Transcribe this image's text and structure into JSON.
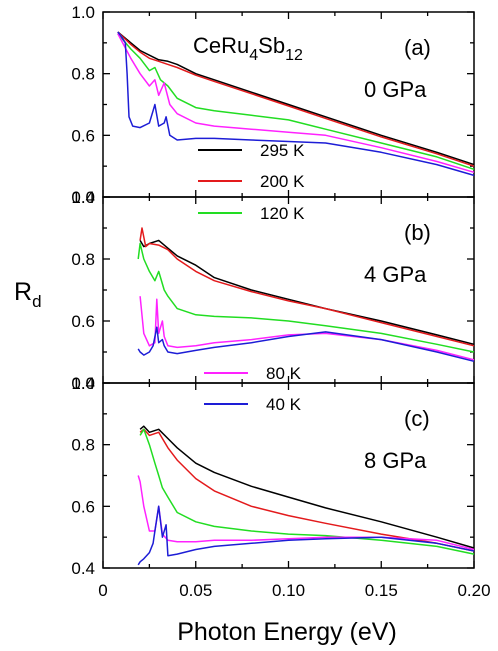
{
  "chart_data": {
    "type": "line",
    "ylabel_main": "R",
    "ylabel_sub": "d",
    "xlabel": "Photon Energy (eV)",
    "xlim": [
      0,
      0.2
    ],
    "x_ticks": [
      0,
      0.05,
      0.1,
      0.15,
      0.2
    ],
    "x_tick_labels": [
      "0",
      "0.05",
      "0.10",
      "0.15",
      "0.20"
    ],
    "y_ticks": [
      0.4,
      0.6,
      0.8,
      1.0
    ],
    "y_tick_labels": [
      "0.4",
      "0.6",
      "0.8",
      "1.0"
    ],
    "colors": {
      "295 K": "#000000",
      "200 K": "#e31a1c",
      "120 K": "#22dd22",
      "80 K": "#ff22ff",
      "40 K": "#1d1dd6"
    },
    "legend": [
      {
        "label": "295 K",
        "color": "#000000"
      },
      {
        "label": "200 K",
        "color": "#e31a1c"
      },
      {
        "label": "120 K",
        "color": "#22dd22"
      },
      {
        "label": "80 K",
        "color": "#ff22ff"
      },
      {
        "label": "40 K",
        "color": "#1d1dd6"
      }
    ],
    "panels": [
      {
        "id": "a",
        "label": "(a)",
        "pressure": "0 GPa",
        "compound_base": "CeRu",
        "compound_sub1": "4",
        "compound_mid": "Sb",
        "compound_sub2": "12",
        "ylim": [
          0.4,
          1.0
        ],
        "series": [
          {
            "name": "295 K",
            "x": [
              0.008,
              0.015,
              0.02,
              0.025,
              0.03,
              0.035,
              0.04,
              0.05,
              0.06,
              0.08,
              0.1,
              0.12,
              0.15,
              0.18,
              0.2
            ],
            "y": [
              0.935,
              0.9,
              0.875,
              0.86,
              0.845,
              0.84,
              0.83,
              0.8,
              0.78,
              0.74,
              0.7,
              0.66,
              0.6,
              0.545,
              0.505
            ]
          },
          {
            "name": "200 K",
            "x": [
              0.008,
              0.015,
              0.02,
              0.025,
              0.03,
              0.035,
              0.04,
              0.05,
              0.06,
              0.08,
              0.1,
              0.12,
              0.15,
              0.18,
              0.2
            ],
            "y": [
              0.935,
              0.895,
              0.87,
              0.85,
              0.84,
              0.83,
              0.82,
              0.795,
              0.775,
              0.735,
              0.695,
              0.655,
              0.595,
              0.54,
              0.5
            ]
          },
          {
            "name": "120 K",
            "x": [
              0.008,
              0.015,
              0.02,
              0.025,
              0.028,
              0.031,
              0.035,
              0.04,
              0.05,
              0.06,
              0.08,
              0.1,
              0.12,
              0.15,
              0.18,
              0.2
            ],
            "y": [
              0.93,
              0.88,
              0.85,
              0.81,
              0.82,
              0.78,
              0.76,
              0.72,
              0.69,
              0.68,
              0.665,
              0.65,
              0.62,
              0.575,
              0.53,
              0.49
            ]
          },
          {
            "name": "80 K",
            "x": [
              0.008,
              0.015,
              0.02,
              0.025,
              0.028,
              0.03,
              0.033,
              0.036,
              0.04,
              0.05,
              0.06,
              0.08,
              0.1,
              0.12,
              0.15,
              0.18,
              0.2
            ],
            "y": [
              0.93,
              0.85,
              0.8,
              0.76,
              0.78,
              0.73,
              0.77,
              0.7,
              0.67,
              0.64,
              0.63,
              0.62,
              0.61,
              0.6,
              0.56,
              0.515,
              0.48
            ]
          },
          {
            "name": "40 K",
            "x": [
              0.008,
              0.01,
              0.012,
              0.013,
              0.014,
              0.016,
              0.02,
              0.025,
              0.027,
              0.028,
              0.03,
              0.033,
              0.034,
              0.036,
              0.04,
              0.05,
              0.06,
              0.08,
              0.1,
              0.12,
              0.15,
              0.18,
              0.2
            ],
            "y": [
              0.935,
              0.92,
              0.9,
              0.8,
              0.66,
              0.63,
              0.625,
              0.64,
              0.68,
              0.7,
              0.63,
              0.64,
              0.66,
              0.6,
              0.585,
              0.59,
              0.59,
              0.585,
              0.58,
              0.575,
              0.545,
              0.505,
              0.47
            ]
          }
        ]
      },
      {
        "id": "b",
        "label": "(b)",
        "pressure": "4 GPa",
        "ylim": [
          0.4,
          1.0
        ],
        "series": [
          {
            "name": "295 K",
            "x": [
              0.02,
              0.022,
              0.025,
              0.03,
              0.035,
              0.04,
              0.05,
              0.06,
              0.08,
              0.1,
              0.12,
              0.15,
              0.18,
              0.2
            ],
            "y": [
              0.86,
              0.84,
              0.85,
              0.86,
              0.835,
              0.81,
              0.78,
              0.74,
              0.7,
              0.67,
              0.64,
              0.6,
              0.555,
              0.525
            ]
          },
          {
            "name": "200 K",
            "x": [
              0.02,
              0.021,
              0.023,
              0.025,
              0.03,
              0.035,
              0.04,
              0.05,
              0.06,
              0.08,
              0.1,
              0.12,
              0.15,
              0.18,
              0.2
            ],
            "y": [
              0.86,
              0.9,
              0.84,
              0.85,
              0.845,
              0.83,
              0.8,
              0.76,
              0.73,
              0.695,
              0.665,
              0.64,
              0.595,
              0.55,
              0.52
            ]
          },
          {
            "name": "120 K",
            "x": [
              0.019,
              0.02,
              0.022,
              0.025,
              0.028,
              0.03,
              0.033,
              0.035,
              0.04,
              0.05,
              0.06,
              0.08,
              0.1,
              0.12,
              0.15,
              0.18,
              0.2
            ],
            "y": [
              0.8,
              0.85,
              0.8,
              0.76,
              0.73,
              0.76,
              0.7,
              0.68,
              0.64,
              0.62,
              0.615,
              0.61,
              0.6,
              0.585,
              0.56,
              0.525,
              0.5
            ]
          },
          {
            "name": "80 K",
            "x": [
              0.02,
              0.022,
              0.025,
              0.028,
              0.029,
              0.03,
              0.032,
              0.033,
              0.035,
              0.04,
              0.05,
              0.06,
              0.08,
              0.1,
              0.12,
              0.15,
              0.18,
              0.2
            ],
            "y": [
              0.68,
              0.56,
              0.52,
              0.53,
              0.67,
              0.56,
              0.6,
              0.55,
              0.52,
              0.515,
              0.52,
              0.53,
              0.54,
              0.555,
              0.56,
              0.54,
              0.505,
              0.475
            ]
          },
          {
            "name": "40 K",
            "x": [
              0.019,
              0.02,
              0.022,
              0.025,
              0.027,
              0.029,
              0.03,
              0.032,
              0.033,
              0.035,
              0.04,
              0.05,
              0.06,
              0.08,
              0.1,
              0.12,
              0.15,
              0.18,
              0.2
            ],
            "y": [
              0.51,
              0.5,
              0.49,
              0.5,
              0.52,
              0.58,
              0.53,
              0.54,
              0.52,
              0.5,
              0.495,
              0.505,
              0.515,
              0.53,
              0.55,
              0.565,
              0.54,
              0.5,
              0.47
            ]
          }
        ]
      },
      {
        "id": "c",
        "label": "(c)",
        "pressure": "8 GPa",
        "ylim": [
          0.4,
          1.0
        ],
        "series": [
          {
            "name": "295 K",
            "x": [
              0.02,
              0.022,
              0.025,
              0.03,
              0.035,
              0.04,
              0.05,
              0.06,
              0.08,
              0.1,
              0.12,
              0.15,
              0.18,
              0.2
            ],
            "y": [
              0.85,
              0.86,
              0.84,
              0.85,
              0.82,
              0.79,
              0.74,
              0.71,
              0.665,
              0.63,
              0.595,
              0.55,
              0.5,
              0.465
            ]
          },
          {
            "name": "200 K",
            "x": [
              0.02,
              0.022,
              0.025,
              0.03,
              0.035,
              0.04,
              0.05,
              0.06,
              0.08,
              0.1,
              0.12,
              0.15,
              0.18,
              0.2
            ],
            "y": [
              0.84,
              0.85,
              0.83,
              0.84,
              0.79,
              0.75,
              0.69,
              0.65,
              0.6,
              0.57,
              0.545,
              0.51,
              0.48,
              0.455
            ]
          },
          {
            "name": "120 K",
            "x": [
              0.02,
              0.022,
              0.025,
              0.028,
              0.03,
              0.032,
              0.035,
              0.04,
              0.05,
              0.06,
              0.08,
              0.1,
              0.12,
              0.15,
              0.18,
              0.2
            ],
            "y": [
              0.83,
              0.85,
              0.8,
              0.74,
              0.7,
              0.66,
              0.63,
              0.58,
              0.55,
              0.535,
              0.52,
              0.51,
              0.505,
              0.49,
              0.47,
              0.445
            ]
          },
          {
            "name": "80 K",
            "x": [
              0.019,
              0.02,
              0.022,
              0.025,
              0.028,
              0.03,
              0.032,
              0.035,
              0.04,
              0.05,
              0.06,
              0.08,
              0.1,
              0.12,
              0.15,
              0.18,
              0.2
            ],
            "y": [
              0.7,
              0.68,
              0.6,
              0.52,
              0.52,
              0.6,
              0.51,
              0.49,
              0.485,
              0.485,
              0.49,
              0.49,
              0.495,
              0.5,
              0.5,
              0.49,
              0.46
            ]
          },
          {
            "name": "40 K",
            "x": [
              0.019,
              0.02,
              0.022,
              0.025,
              0.027,
              0.028,
              0.03,
              0.032,
              0.034,
              0.035,
              0.04,
              0.05,
              0.06,
              0.08,
              0.1,
              0.12,
              0.15,
              0.18,
              0.2
            ],
            "y": [
              0.41,
              0.42,
              0.43,
              0.45,
              0.48,
              0.52,
              0.6,
              0.5,
              0.54,
              0.44,
              0.445,
              0.46,
              0.47,
              0.48,
              0.49,
              0.495,
              0.5,
              0.48,
              0.455
            ]
          }
        ]
      }
    ]
  }
}
